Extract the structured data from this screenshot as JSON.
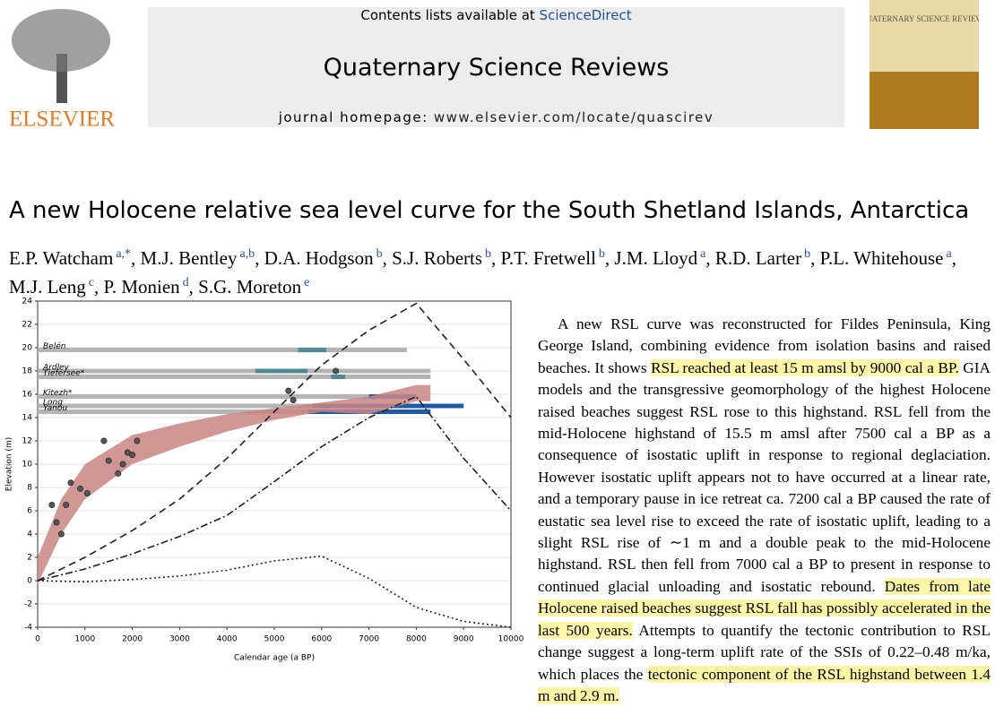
{
  "header": {
    "contents_prefix": "Contents lists available at ",
    "contents_link": "ScienceDirect",
    "journal": "Quaternary Science Reviews",
    "homepage_prefix": "journal homepage: ",
    "homepage_link": "www.elsevier.com/locate/quascirev",
    "publisher": "ELSEVIER",
    "cover_title": "QUATERNARY SCIENCE REVIEWS"
  },
  "article": {
    "title": "A new Holocene relative sea level curve for the South Shetland Islands, Antarctica",
    "author_separator": ",",
    "authors": [
      {
        "name": "E.P. Watcham",
        "aff": "a,*"
      },
      {
        "name": "M.J. Bentley",
        "aff": "a,b"
      },
      {
        "name": "D.A. Hodgson",
        "aff": "b"
      },
      {
        "name": "S.J. Roberts",
        "aff": "b"
      },
      {
        "name": "P.T. Fretwell",
        "aff": "b"
      },
      {
        "name": "J.M. Lloyd",
        "aff": "a"
      },
      {
        "name": "R.D. Larter",
        "aff": "b"
      },
      {
        "name": "P.L. Whitehouse",
        "aff": "a"
      },
      {
        "name": "M.J. Leng",
        "aff": "c"
      },
      {
        "name": "P. Monien",
        "aff": "d"
      },
      {
        "name": "S.G. Moreton",
        "aff": "e"
      }
    ]
  },
  "chart_data": {
    "type": "line",
    "xlabel": "Calendar age (a BP)",
    "ylabel": "Elevation (m)",
    "xlim": [
      0,
      10000
    ],
    "ylim": [
      -4,
      24
    ],
    "xticks": [
      0,
      1000,
      2000,
      3000,
      4000,
      5000,
      6000,
      7000,
      8000,
      9000,
      10000
    ],
    "yticks": [
      -4,
      -2,
      0,
      2,
      4,
      6,
      8,
      10,
      12,
      14,
      16,
      18,
      20,
      22,
      24
    ],
    "grid": true,
    "x": [
      0,
      1000,
      2000,
      3000,
      4000,
      5000,
      6000,
      7000,
      8000,
      9000,
      10000
    ],
    "series": [
      {
        "color": "#222222",
        "style": "dashed",
        "values": [
          0,
          2,
          4.3,
          7,
          10.5,
          14.5,
          18.5,
          21.5,
          23.8,
          19,
          14
        ]
      },
      {
        "color": "#222222",
        "style": "dashdot",
        "values": [
          0,
          1,
          2.3,
          3.8,
          5.6,
          8.5,
          11.5,
          14,
          15.8,
          10.5,
          6
        ]
      },
      {
        "color": "#222222",
        "style": "dotted",
        "values": [
          0,
          -0.1,
          0.1,
          0.4,
          0.9,
          1.7,
          2.1,
          0.2,
          -2.3,
          -3.5,
          -4
        ]
      }
    ],
    "band": {
      "color": "#c98583",
      "x": [
        0,
        500,
        1000,
        2000,
        3000,
        4000,
        5000,
        6000,
        7000,
        8000,
        8300
      ],
      "upper": [
        2,
        7,
        10,
        12.5,
        13.5,
        14.3,
        14.8,
        15.3,
        15.8,
        16.8,
        16.8
      ],
      "lower": [
        -0.3,
        4,
        7,
        10,
        11.5,
        12.8,
        13.8,
        14.5,
        14.3,
        15.4,
        15.4
      ]
    },
    "ranges": [
      {
        "name": "Belén",
        "y": 19.8,
        "start": 0,
        "end": 7800,
        "inner_start": 5500,
        "inner_end": 6100,
        "inner_color": "#4f8a96"
      },
      {
        "name": "Ardley",
        "y": 18,
        "start": 0,
        "end": 8300,
        "inner_start": 4600,
        "inner_end": 5700,
        "inner_color": "#4f8a96"
      },
      {
        "name": "Tiefersee*",
        "y": 17.5,
        "start": 0,
        "end": 8300,
        "inner_start": 6200,
        "inner_end": 6500,
        "inner_color": "#4f8a96"
      },
      {
        "name": "Kitezh*",
        "y": 15.8,
        "start": 0,
        "end": 7500,
        "inner_start": 7000,
        "inner_end": 8000,
        "inner_color": "#1f5aa6"
      },
      {
        "name": "Long",
        "y": 15,
        "start": 0,
        "end": 9000,
        "inner_start": 5800,
        "inner_end": 9000,
        "inner_color": "#1f5aa6"
      },
      {
        "name": "Yanou",
        "y": 14.5,
        "start": 0,
        "end": 8300,
        "inner_start": 5700,
        "inner_end": 8300,
        "inner_color": "#1f5aa6"
      }
    ],
    "range_color": "#b4b4b4",
    "points": {
      "color": "#555555",
      "x": [
        300,
        400,
        500,
        600,
        700,
        900,
        1050,
        1400,
        1500,
        1700,
        1800,
        1900,
        2000,
        2100,
        5300,
        5400,
        6300
      ],
      "y": [
        6.5,
        5,
        4,
        6.5,
        8.4,
        7.9,
        7.5,
        12,
        10.3,
        9.2,
        10,
        11,
        10.8,
        12,
        16.3,
        15.5,
        18
      ]
    }
  },
  "abstract": {
    "segments": [
      {
        "text": "A new RSL curve was reconstructed for Fildes Peninsula, King George Island, combining evidence from isolation basins and raised beaches. It shows ",
        "highlight": false
      },
      {
        "text": "RSL reached at least 15 m amsl by 9000 cal a BP.",
        "highlight": true
      },
      {
        "text": " GIA models and the transgressive geomorphology of the highest Holocene raised beaches suggest RSL rose to this highstand. RSL fell from the mid-Holocene highstand of 15.5 m amsl after 7500 cal a BP as a consequence of isostatic uplift in response to regional deglaciation. However isostatic uplift appears not to have occurred at a linear rate, and a temporary pause in ice retreat ca. 7200 cal a BP caused the rate of eustatic sea level rise to exceed the rate of isostatic uplift, leading to a slight RSL rise of ∼1 m and a double peak to the mid-Holocene highstand. RSL then fell from 7000 cal a BP to present in response to continued glacial unloading and isostatic rebound. ",
        "highlight": false
      },
      {
        "text": "Dates from late Holocene raised beaches suggest RSL fall has possibly accelerated in the last 500 years.",
        "highlight": true
      },
      {
        "text": " Attempts to quantify the tectonic contribution to RSL change suggest a long-term uplift rate of the SSIs of 0.22–0.48 m/ka, which places the ",
        "highlight": false
      },
      {
        "text": "tectonic component of the RSL highstand between 1.4 m and 2.9 m.",
        "highlight": true
      }
    ]
  }
}
